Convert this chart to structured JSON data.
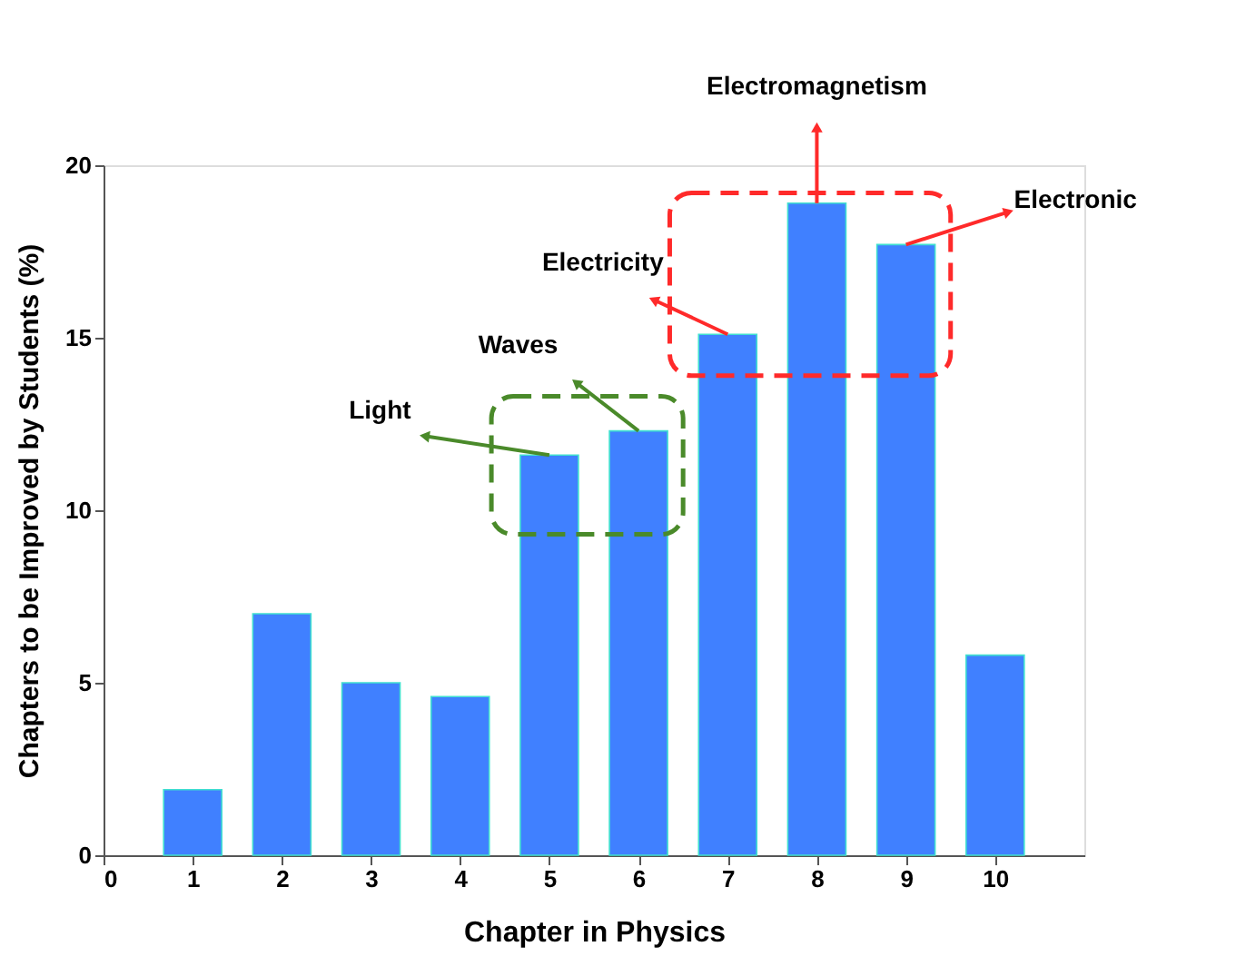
{
  "chart_data": {
    "type": "bar",
    "xlabel": "Chapter in Physics",
    "ylabel": "Chapters to be Improved by Students (%)",
    "x": [
      1,
      2,
      3,
      4,
      5,
      6,
      7,
      8,
      9,
      10
    ],
    "values": [
      1.9,
      7.0,
      5.0,
      4.6,
      11.6,
      12.3,
      15.1,
      18.9,
      17.7,
      5.8
    ],
    "color": "#4080ff",
    "xlim": [
      0,
      11
    ],
    "xticks": [
      0,
      1,
      2,
      3,
      4,
      5,
      6,
      7,
      8,
      9,
      10
    ],
    "ylim": [
      0,
      20
    ],
    "yticks": [
      0,
      5,
      10,
      15,
      20
    ],
    "grid": false,
    "annotations": [
      {
        "text": "Light",
        "x": 5,
        "y": 11.6
      },
      {
        "text": "Waves",
        "x": 6,
        "y": 12.3
      },
      {
        "text": "Electricity",
        "x": 7,
        "y": 15.1
      },
      {
        "text": "Electromagnetism",
        "x": 8,
        "y": 18.9
      },
      {
        "text": "Electronic",
        "x": 9,
        "y": 17.7
      }
    ]
  }
}
